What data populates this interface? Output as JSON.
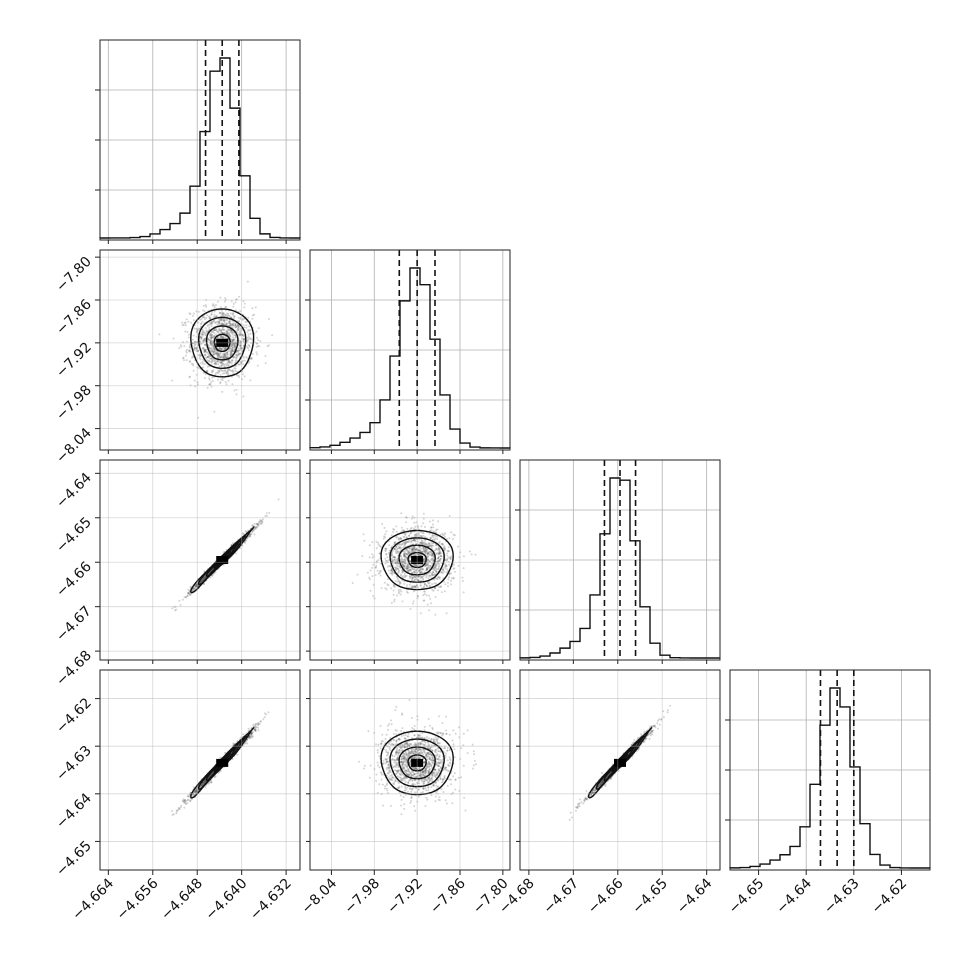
{
  "chart_data": {
    "type": "corner",
    "title": "",
    "parameters": [
      {
        "name": "",
        "center": -4.6435,
        "sigma": 0.0028,
        "range": [
          -4.6655,
          -4.6295
        ],
        "x_ticks": [
          "−4.664",
          "−4.656",
          "−4.648",
          "−4.640",
          "−4.632"
        ],
        "x_tick_values": [
          -4.664,
          -4.656,
          -4.648,
          -4.64,
          -4.632
        ],
        "quantiles": [
          -4.6465,
          -4.6435,
          -4.6405
        ]
      },
      {
        "name": "",
        "center": -7.92,
        "sigma": 0.025,
        "range": [
          -8.07,
          -7.79
        ],
        "x_ticks": [
          "−8.04",
          "−7.98",
          "−7.92",
          "−7.86",
          "−7.80"
        ],
        "x_tick_values": [
          -8.04,
          -7.98,
          -7.92,
          -7.86,
          -7.8
        ],
        "y_ticks": [
          "−7.80",
          "−7.86",
          "−7.92",
          "−7.98",
          "−8.04"
        ],
        "y_tick_values": [
          -7.8,
          -7.86,
          -7.92,
          -7.98,
          -8.04
        ],
        "quantiles": [
          -7.945,
          -7.92,
          -7.895
        ]
      },
      {
        "name": "",
        "center": -4.6595,
        "sigma": 0.0035,
        "range": [
          -4.682,
          -4.637
        ],
        "x_ticks": [
          "−4.68",
          "−4.67",
          "−4.66",
          "−4.65",
          "−4.64"
        ],
        "x_tick_values": [
          -4.68,
          -4.67,
          -4.66,
          -4.65,
          -4.64
        ],
        "y_ticks": [
          "−4.64",
          "−4.65",
          "−4.66",
          "−4.67",
          "−4.68"
        ],
        "y_tick_values": [
          -4.64,
          -4.65,
          -4.66,
          -4.67,
          -4.68
        ],
        "quantiles": [
          -4.663,
          -4.6595,
          -4.656
        ]
      },
      {
        "name": "",
        "center": -4.6335,
        "sigma": 0.0035,
        "range": [
          -4.656,
          -4.614
        ],
        "x_ticks": [
          "−4.65",
          "−4.64",
          "−4.63",
          "−4.62"
        ],
        "x_tick_values": [
          -4.65,
          -4.64,
          -4.63,
          -4.62
        ],
        "y_ticks": [
          "−4.62",
          "−4.63",
          "−4.64",
          "−4.65"
        ],
        "y_tick_values": [
          -4.62,
          -4.63,
          -4.64,
          -4.65
        ],
        "quantiles": [
          -4.637,
          -4.6335,
          -4.63
        ]
      }
    ],
    "pair_correlation": [
      [
        1,
        0,
        0.99,
        0.99
      ],
      [
        0,
        1,
        0,
        0
      ],
      [
        0.99,
        0,
        1,
        0.99
      ],
      [
        0.99,
        0,
        0.99,
        1
      ]
    ],
    "histogram_bins": 20,
    "contour_sigma_levels": [
      0.5,
      1.0,
      1.5,
      2.0
    ],
    "grid": true,
    "colors": {
      "line": "#111111",
      "samples": "#555555",
      "grid": "#b0b0b0",
      "density": "#000000"
    }
  }
}
